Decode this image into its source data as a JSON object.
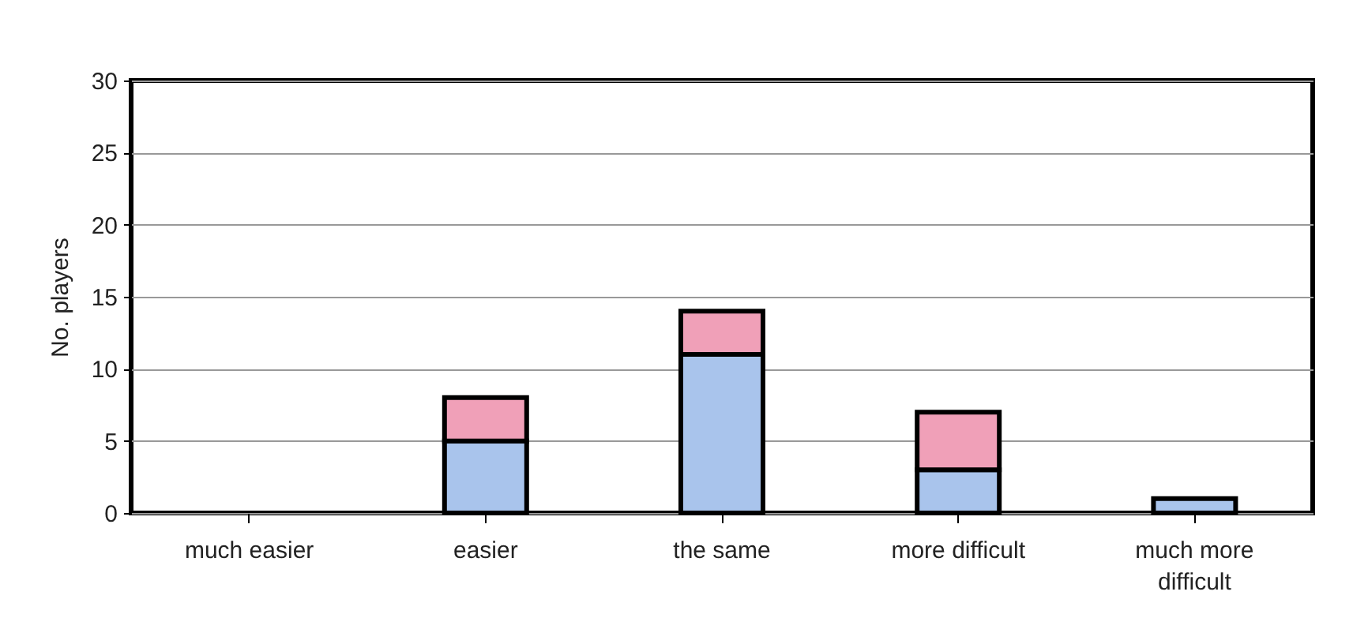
{
  "chart_data": {
    "type": "bar",
    "ylabel": "No. players",
    "stacked": true,
    "categories": [
      "much easier",
      "easier",
      "the same",
      "more difficult",
      "much more difficult"
    ],
    "series": [
      {
        "color": "#a9c4ec",
        "values": [
          0,
          5,
          11,
          3,
          1
        ]
      },
      {
        "color": "#f0a0b8",
        "values": [
          0,
          3,
          3,
          4,
          0
        ]
      }
    ],
    "ylim": [
      0,
      30
    ],
    "yticks": [
      0,
      5,
      10,
      15,
      20,
      25,
      30
    ],
    "grid": "y"
  }
}
